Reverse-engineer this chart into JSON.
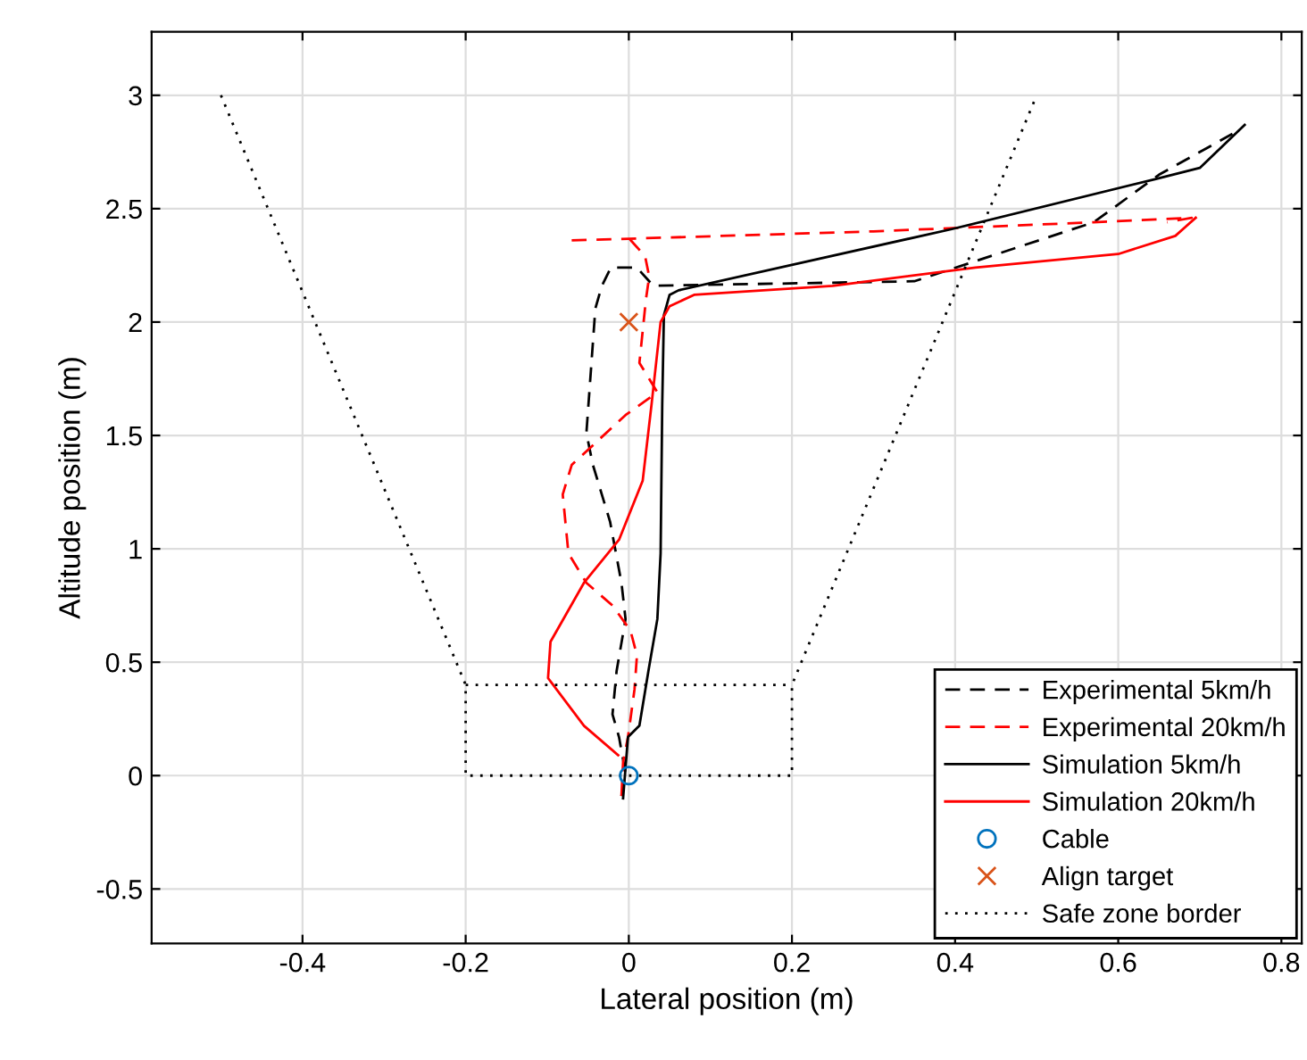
{
  "chart_data": {
    "type": "line",
    "xlabel": "Lateral position (m)",
    "ylabel": "Altitude position (m)",
    "xlim": [
      -0.585,
      0.825
    ],
    "ylim": [
      -0.74,
      3.28
    ],
    "xticks": [
      -0.4,
      -0.2,
      0,
      0.2,
      0.4,
      0.6,
      0.8
    ],
    "yticks": [
      -0.5,
      0,
      0.5,
      1,
      1.5,
      2,
      2.5,
      3
    ],
    "grid": true,
    "legend": "bottom right",
    "series": [
      {
        "name": "Experimental 5km/h",
        "color": "#000000",
        "line_style": "dashed",
        "x": [
          -0.009,
          -0.004,
          -0.012,
          -0.02,
          -0.015,
          -0.004,
          -0.009,
          -0.023,
          -0.044,
          -0.052,
          -0.041,
          -0.033,
          -0.022,
          0.01,
          0.03,
          0.35,
          0.57,
          0.65,
          0.74
        ],
        "values": [
          -0.09,
          0.01,
          0.17,
          0.27,
          0.46,
          0.69,
          0.85,
          1.12,
          1.37,
          1.51,
          2.06,
          2.16,
          2.24,
          2.24,
          2.16,
          2.18,
          2.44,
          2.65,
          2.83
        ]
      },
      {
        "name": "Experimental 20km/h",
        "color": "#ff0000",
        "line_style": "dashed",
        "x": [
          -0.009,
          -0.007,
          -0.001,
          0.007,
          0.01,
          0.002,
          -0.02,
          -0.052,
          -0.074,
          -0.081,
          -0.07,
          -0.004,
          0.035,
          0.013,
          0.021,
          0.025,
          0.02,
          0.0,
          null,
          -0.07,
          0.3,
          0.57,
          0.69,
          0.66
        ],
        "values": [
          -0.09,
          0.06,
          0.17,
          0.38,
          0.53,
          0.64,
          0.75,
          0.85,
          0.98,
          1.24,
          1.37,
          1.59,
          1.69,
          1.82,
          2.1,
          2.2,
          2.29,
          2.37,
          null,
          2.36,
          2.4,
          2.44,
          2.46,
          2.44
        ]
      },
      {
        "name": "Simulation 5km/h",
        "color": "#000000",
        "line_style": "solid",
        "x": [
          -0.007,
          -0.001,
          0.013,
          0.024,
          0.035,
          0.039,
          0.041,
          0.043,
          0.05,
          0.061,
          0.396,
          0.645,
          0.7,
          0.755
        ],
        "values": [
          -0.1,
          0.17,
          0.22,
          0.46,
          0.69,
          0.98,
          1.64,
          2.03,
          2.12,
          2.14,
          2.41,
          2.63,
          2.68,
          2.87
        ]
      },
      {
        "name": "Simulation 20km/h",
        "color": "#ff0000",
        "line_style": "solid",
        "x": [
          -0.013,
          -0.055,
          -0.099,
          -0.096,
          -0.055,
          -0.012,
          0.017,
          0.028,
          0.039,
          0.05,
          0.08,
          0.25,
          0.425,
          0.6,
          0.67,
          0.695
        ],
        "values": [
          0.09,
          0.22,
          0.43,
          0.59,
          0.85,
          1.04,
          1.3,
          1.64,
          2.0,
          2.07,
          2.12,
          2.16,
          2.24,
          2.3,
          2.38,
          2.46
        ]
      },
      {
        "name": "Cable",
        "type": "scatter",
        "color": "#0072bd",
        "marker": "circle",
        "x": [
          0
        ],
        "values": [
          0
        ]
      },
      {
        "name": "Align target",
        "type": "scatter",
        "color": "#d95319",
        "marker": "cross",
        "x": [
          0
        ],
        "values": [
          2
        ]
      },
      {
        "name": "Safe zone border",
        "color": "#000000",
        "line_style": "dotted",
        "x": [
          -0.5,
          -0.2,
          -0.2,
          0.2,
          0.2,
          0.5,
          null,
          -0.2,
          0.2
        ],
        "values": [
          3,
          0.4,
          0,
          0,
          0.4,
          3,
          null,
          0.4,
          0.4
        ]
      }
    ]
  }
}
